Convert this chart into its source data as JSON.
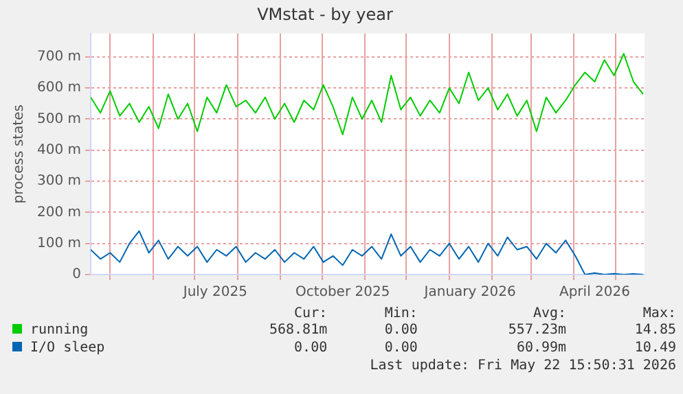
{
  "chart_data": {
    "type": "line",
    "title": "VMstat - by year",
    "ylabel": "process states",
    "x": [
      "2025-04-17",
      "2025-04-24",
      "2025-05-01",
      "2025-05-08",
      "2025-05-15",
      "2025-05-22",
      "2025-05-29",
      "2025-06-05",
      "2025-06-12",
      "2025-06-19",
      "2025-06-26",
      "2025-07-03",
      "2025-07-10",
      "2025-07-17",
      "2025-07-24",
      "2025-07-31",
      "2025-08-07",
      "2025-08-14",
      "2025-08-21",
      "2025-08-28",
      "2025-09-04",
      "2025-09-11",
      "2025-09-18",
      "2025-09-25",
      "2025-10-02",
      "2025-10-09",
      "2025-10-16",
      "2025-10-23",
      "2025-10-30",
      "2025-11-06",
      "2025-11-13",
      "2025-11-20",
      "2025-11-27",
      "2025-12-04",
      "2025-12-11",
      "2025-12-18",
      "2025-12-25",
      "2026-01-01",
      "2026-01-08",
      "2026-01-15",
      "2026-01-22",
      "2026-01-29",
      "2026-02-05",
      "2026-02-12",
      "2026-02-19",
      "2026-02-26",
      "2026-03-05",
      "2026-03-12",
      "2026-03-19",
      "2026-03-26",
      "2026-04-02",
      "2026-04-09",
      "2026-04-16",
      "2026-04-23",
      "2026-04-30",
      "2026-05-07",
      "2026-05-14",
      "2026-05-21"
    ],
    "series": [
      {
        "name": "running",
        "color": "#00cc00",
        "values": [
          570,
          520,
          590,
          510,
          550,
          490,
          540,
          470,
          580,
          500,
          550,
          460,
          570,
          520,
          610,
          540,
          560,
          520,
          570,
          500,
          550,
          490,
          560,
          530,
          610,
          540,
          450,
          570,
          500,
          560,
          490,
          640,
          530,
          570,
          510,
          560,
          520,
          600,
          550,
          650,
          560,
          600,
          530,
          580,
          510,
          560,
          460,
          570,
          520,
          560,
          610,
          650,
          620,
          690,
          640,
          710,
          620,
          580
        ]
      },
      {
        "name": "I/O sleep",
        "color": "#0066b3",
        "values": [
          80,
          50,
          70,
          40,
          100,
          140,
          70,
          110,
          50,
          90,
          60,
          90,
          40,
          80,
          60,
          90,
          40,
          70,
          50,
          80,
          40,
          70,
          50,
          90,
          40,
          60,
          30,
          80,
          60,
          90,
          50,
          130,
          60,
          90,
          40,
          80,
          60,
          100,
          50,
          90,
          40,
          100,
          60,
          120,
          80,
          90,
          50,
          100,
          70,
          110,
          60,
          0,
          5,
          0,
          3,
          0,
          2,
          0
        ]
      }
    ],
    "xlim": [
      "2025-04-17",
      "2026-05-22"
    ],
    "xticks": [
      {
        "value": "2025-05-01",
        "label": null
      },
      {
        "value": "2025-06-01",
        "label": null
      },
      {
        "value": "2025-07-01",
        "label": null
      },
      {
        "value": "2025-07-16",
        "label": "July 2025"
      },
      {
        "value": "2025-08-01",
        "label": null
      },
      {
        "value": "2025-09-01",
        "label": null
      },
      {
        "value": "2025-10-01",
        "label": null
      },
      {
        "value": "2025-10-16",
        "label": "October 2025"
      },
      {
        "value": "2025-11-01",
        "label": null
      },
      {
        "value": "2025-12-01",
        "label": null
      },
      {
        "value": "2026-01-01",
        "label": null
      },
      {
        "value": "2026-01-16",
        "label": "January 2026"
      },
      {
        "value": "2026-02-01",
        "label": null
      },
      {
        "value": "2026-03-01",
        "label": null
      },
      {
        "value": "2026-04-01",
        "label": null
      },
      {
        "value": "2026-04-16",
        "label": "April 2026"
      },
      {
        "value": "2026-05-01",
        "label": null
      }
    ],
    "ylim": [
      0,
      775
    ],
    "yticks": [
      0,
      {
        "value": 100,
        "label": "100 m"
      },
      {
        "value": 200,
        "label": "200 m"
      },
      {
        "value": 300,
        "label": "300 m"
      },
      {
        "value": 400,
        "label": "400 m"
      },
      {
        "value": 500,
        "label": "500 m"
      },
      {
        "value": 600,
        "label": "600 m"
      },
      {
        "value": 700,
        "label": "700 m"
      }
    ],
    "grid": true,
    "legend": "bottom",
    "marker": "none",
    "line_style": "solid",
    "annotations": [
      "Cur:",
      "Min:",
      "Avg:",
      "Max:",
      "568.81m",
      "0.00",
      "557.23m",
      "14.85",
      "0.00",
      "0.00",
      "60.99m",
      "10.49",
      "Last update: Fri May 22 15:50:31 2026"
    ]
  }
}
